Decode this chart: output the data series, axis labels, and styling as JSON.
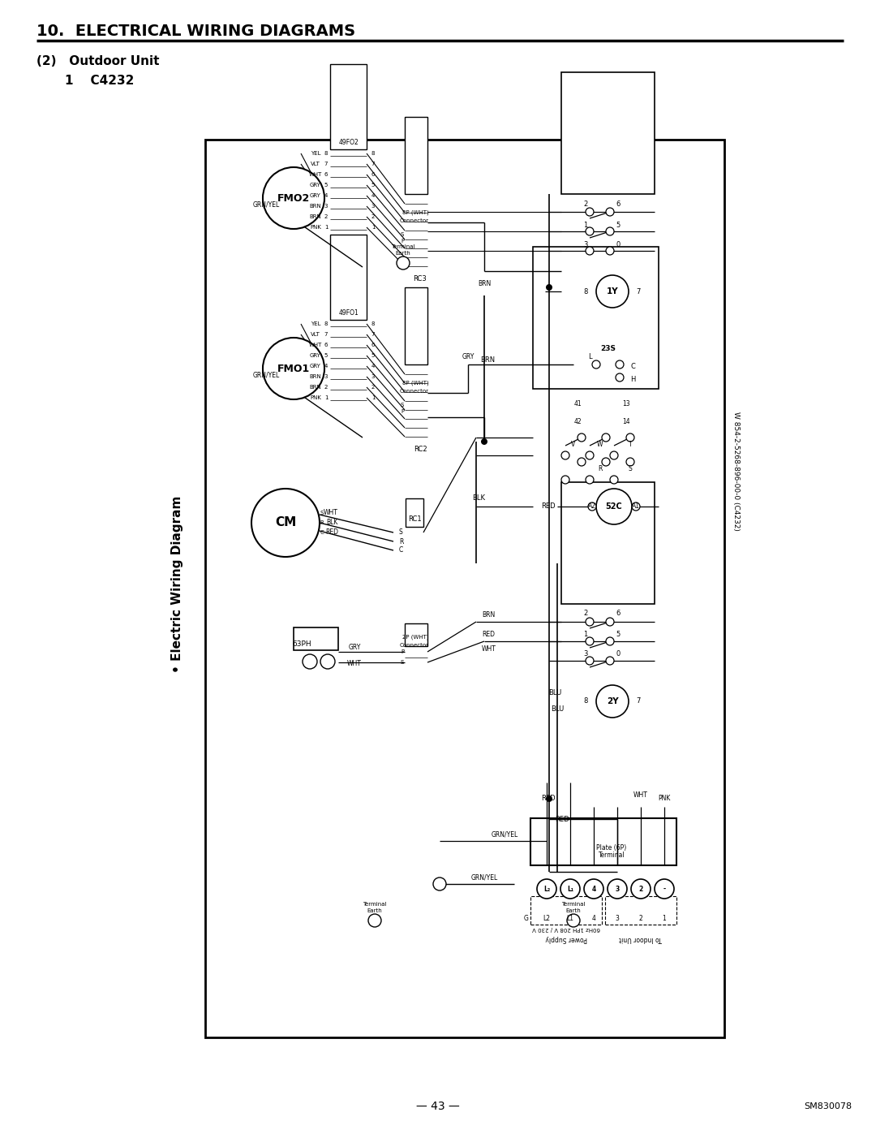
{
  "title": "10.  ELECTRICAL WIRING DIAGRAMS",
  "subtitle1": "(2)   Outdoor Unit",
  "subtitle2": "1    C4232",
  "page_number": "— 43 —",
  "doc_number": "SM830078",
  "diagram_title": "• Electric Wiring Diagram",
  "model_label": "W 854-2-5268-896-00-0 (C4232)",
  "bg_color": "#ffffff"
}
